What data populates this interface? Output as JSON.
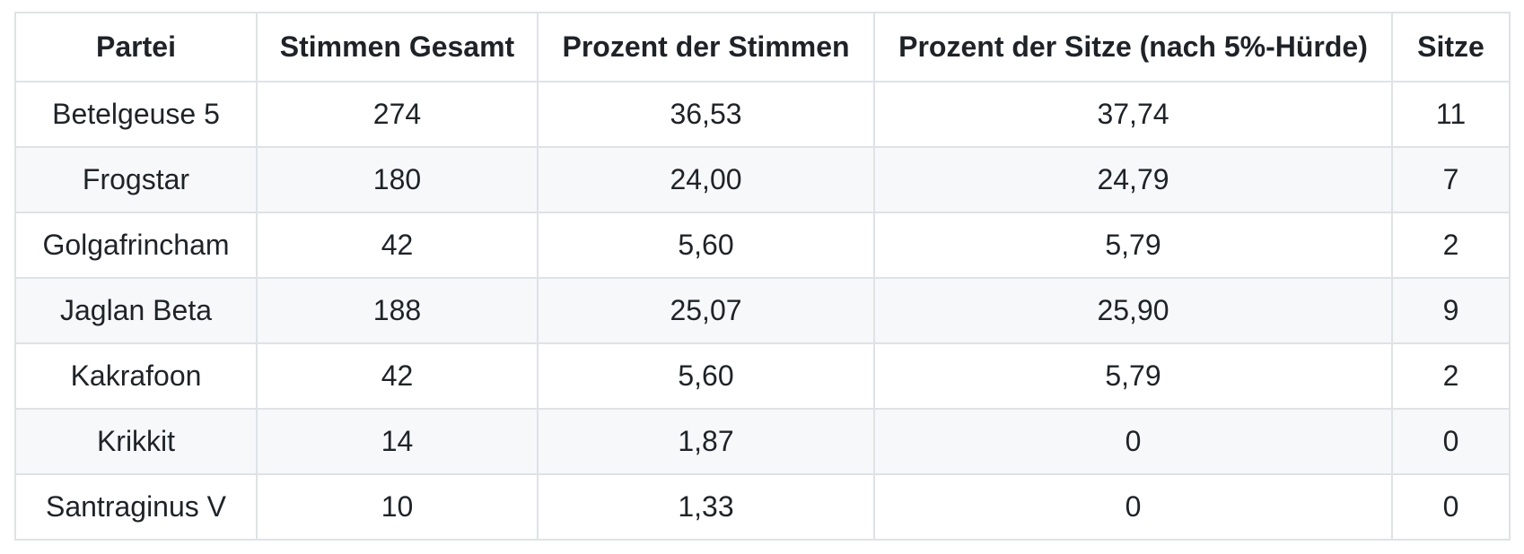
{
  "chart_data": {
    "type": "table",
    "columns": [
      "Partei",
      "Stimmen Gesamt",
      "Prozent der Stimmen",
      "Prozent der Sitze (nach 5%-Hürde)",
      "Sitze"
    ],
    "rows": [
      [
        "Betelgeuse 5",
        "274",
        "36,53",
        "37,74",
        "11"
      ],
      [
        "Frogstar",
        "180",
        "24,00",
        "24,79",
        "7"
      ],
      [
        "Golgafrincham",
        "42",
        "5,60",
        "5,79",
        "2"
      ],
      [
        "Jaglan Beta",
        "188",
        "25,07",
        "25,90",
        "9"
      ],
      [
        "Kakrafoon",
        "42",
        "5,60",
        "5,79",
        "2"
      ],
      [
        "Krikkit",
        "14",
        "1,87",
        "0",
        "0"
      ],
      [
        "Santraginus V",
        "10",
        "1,33",
        "0",
        "0"
      ]
    ],
    "layout": {
      "striped_rows": "even",
      "cell_alignment": "center",
      "header_bold": true
    }
  },
  "colors": {
    "border": "#dfe2e6",
    "stripe": "#f6f8fa",
    "text": "#1f2328",
    "background": "#ffffff"
  }
}
